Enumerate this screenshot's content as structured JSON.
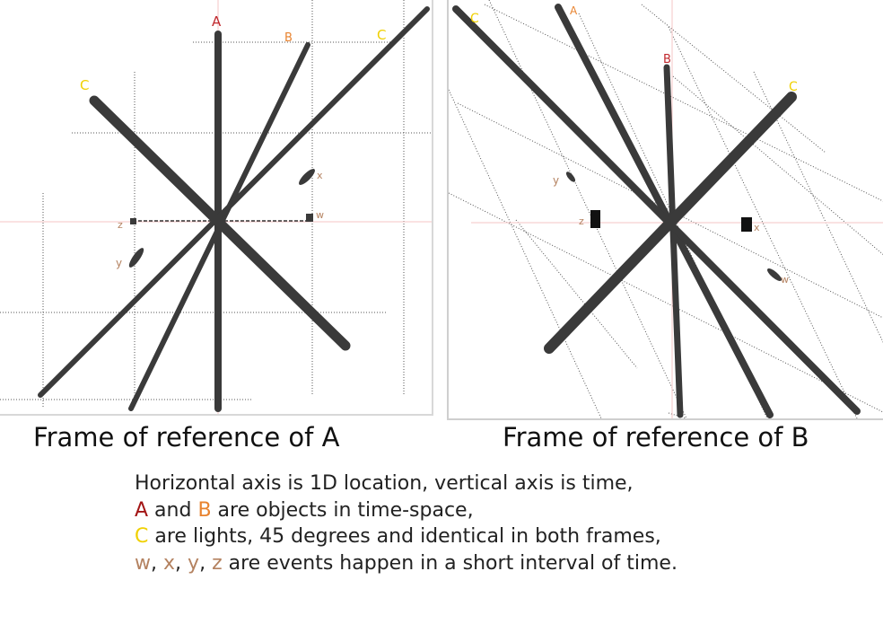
{
  "captions": {
    "frame_a": "Frame of reference of A",
    "frame_b": "Frame of reference of B"
  },
  "explanation": {
    "line1": "Horizontal axis is 1D location, vertical axis is time,",
    "line2": {
      "a": "A",
      "and": " and ",
      "b": "B",
      "rest": " are objects in time-space,"
    },
    "line3": {
      "c": "C",
      "rest": " are lights, 45 degrees and identical in both frames,"
    },
    "line4": {
      "w": "w",
      "sep1": ", ",
      "x": "x",
      "sep2": ", ",
      "y": "y",
      "sep3": ", ",
      "z": "z",
      "rest": " are events happen in a short interval of time."
    }
  },
  "frame_a": {
    "labels": {
      "a": "A",
      "b": "B",
      "c_left": "C",
      "c_right": "C",
      "w": "w",
      "x": "x",
      "y": "y",
      "z": "z"
    }
  },
  "frame_b": {
    "labels": {
      "a": "A",
      "b": "B",
      "c_left": "C",
      "c_right": "C",
      "w": "w",
      "x": "x",
      "y": "y",
      "z": "z"
    }
  },
  "colors": {
    "object_a": "#c0282d",
    "object_b": "#e8832f",
    "light_c": "#f0d000",
    "events": "#b48260",
    "worldline": "#3a3a3a",
    "axis": "#f4c4c4",
    "grid": "#555555"
  }
}
